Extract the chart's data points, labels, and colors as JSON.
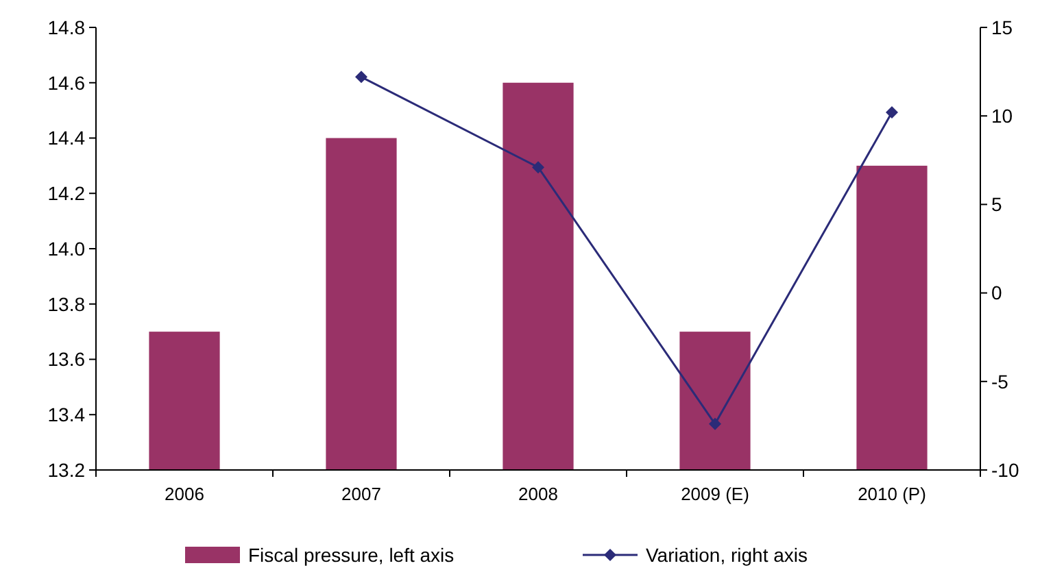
{
  "chart_data": {
    "type": "bar",
    "categories": [
      "2006",
      "2007",
      "2008",
      "2009 (E)",
      "2010 (P)"
    ],
    "series": [
      {
        "name": "Fiscal pressure, left axis",
        "color": "#993366",
        "values": [
          13.7,
          14.4,
          14.6,
          13.7,
          14.3
        ]
      },
      {
        "name": "Variation, right axis",
        "type": "line",
        "axis": "y2",
        "color": "#2b2b78",
        "marker": "diamond",
        "values": [
          null,
          12.2,
          7.1,
          -7.4,
          10.2
        ]
      }
    ],
    "ylim": [
      13.2,
      14.8
    ],
    "yticks": [
      {
        "value": 13.2,
        "label": "13.2"
      },
      {
        "value": 13.4,
        "label": "13.4"
      },
      {
        "value": 13.6,
        "label": "13.6"
      },
      {
        "value": 13.8,
        "label": "13.8"
      },
      {
        "value": 14.0,
        "label": "14.0"
      },
      {
        "value": 14.2,
        "label": "14.2"
      },
      {
        "value": 14.4,
        "label": "14.4"
      },
      {
        "value": 14.6,
        "label": "14.6"
      },
      {
        "value": 14.8,
        "label": "14.8"
      }
    ],
    "y2lim": [
      -10,
      15
    ],
    "y2ticks": [
      -10,
      -5,
      0,
      5,
      10,
      15
    ],
    "grid": false,
    "legend": "bottom"
  }
}
